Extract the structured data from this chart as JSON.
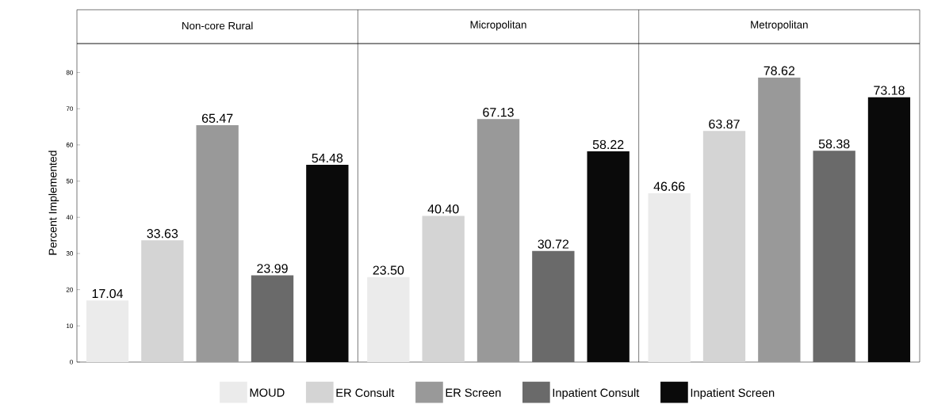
{
  "chart_data": {
    "type": "bar",
    "ylabel": "Percent Implemented",
    "categories": [
      "Non-core Rural",
      "Micropolitan",
      "Metropolitan"
    ],
    "ylim": [
      0,
      88
    ],
    "yticks": [
      0,
      10,
      20,
      30,
      40,
      50,
      60,
      70,
      80
    ],
    "legend": "bottom",
    "series": [
      {
        "name": "MOUD",
        "color": "#ebebeb",
        "values": [
          17.04,
          23.5,
          46.66
        ],
        "value_labels": [
          "17.04",
          "23.50",
          "46.66"
        ]
      },
      {
        "name": "ER Consult",
        "color": "#d4d4d4",
        "values": [
          33.63,
          40.4,
          63.87
        ],
        "value_labels": [
          "33.63",
          "40.40",
          "63.87"
        ]
      },
      {
        "name": "ER Screen",
        "color": "#999999",
        "values": [
          65.47,
          67.13,
          78.62
        ],
        "value_labels": [
          "65.47",
          "67.13",
          "78.62"
        ]
      },
      {
        "name": "Inpatient Consult",
        "color": "#6a6a6a",
        "values": [
          23.99,
          30.72,
          58.38
        ],
        "value_labels": [
          "23.99",
          "30.72",
          "58.38"
        ]
      },
      {
        "name": "Inpatient Screen",
        "color": "#0a0a0a",
        "values": [
          54.48,
          58.22,
          73.18
        ],
        "value_labels": [
          "54.48",
          "58.22",
          "73.18"
        ]
      }
    ]
  }
}
